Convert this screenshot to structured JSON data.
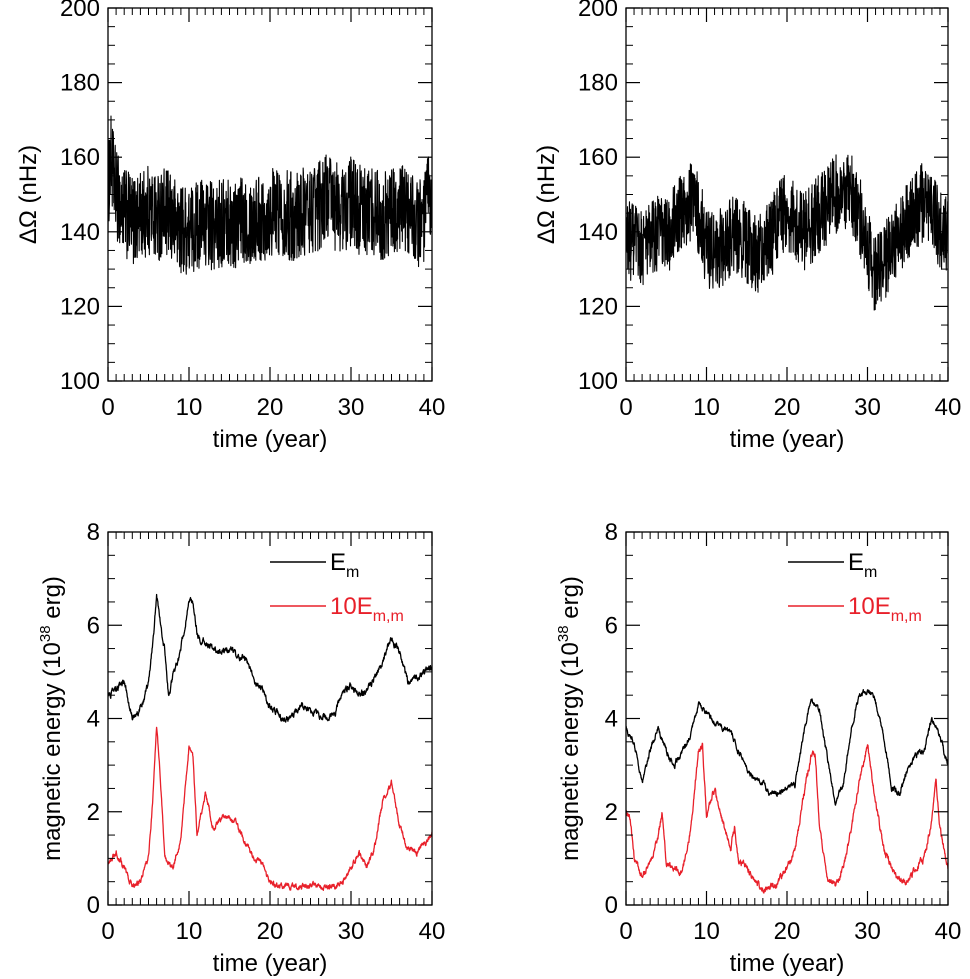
{
  "chart_data": [
    {
      "id": "omega-a",
      "type": "line",
      "xlabel": "time (year)",
      "ylabel": "ΔΩ (nHz)",
      "xlim": [
        0,
        40
      ],
      "ylim": [
        100,
        200
      ],
      "xticks": [
        "0",
        "10",
        "20",
        "30",
        "40"
      ],
      "yticks": [
        "100",
        "120",
        "140",
        "160",
        "180",
        "200"
      ],
      "grid": false,
      "series": [
        {
          "color": "#000000",
          "noise_amplitude": 9,
          "x": [
            0,
            0.3,
            1,
            2,
            3,
            4,
            5,
            6,
            7,
            8,
            9,
            10,
            11,
            12,
            13,
            14,
            15,
            16,
            17,
            18,
            19,
            20,
            21,
            22,
            23,
            24,
            25,
            26,
            27,
            28,
            29,
            30,
            31,
            32,
            33,
            34,
            35,
            36,
            37,
            38,
            39,
            39.6,
            40
          ],
          "y": [
            150,
            160,
            150,
            145,
            143,
            144,
            146,
            144,
            145,
            143,
            141,
            140,
            142,
            143,
            141,
            142,
            143,
            142,
            144,
            143,
            144,
            145,
            146,
            145,
            144,
            145,
            146,
            147,
            150,
            147,
            146,
            148,
            146,
            145,
            146,
            144,
            145,
            146,
            145,
            143,
            142,
            150,
            140
          ]
        }
      ]
    },
    {
      "id": "omega-b",
      "type": "line",
      "xlabel": "time (year)",
      "ylabel": "ΔΩ (nHz)",
      "xlim": [
        0,
        40
      ],
      "ylim": [
        100,
        200
      ],
      "xticks": [
        "0",
        "10",
        "20",
        "30",
        "40"
      ],
      "yticks": [
        "100",
        "120",
        "140",
        "160",
        "180",
        "200"
      ],
      "grid": false,
      "series": [
        {
          "color": "#000000",
          "noise_amplitude": 8,
          "x": [
            0,
            1,
            2,
            3,
            4,
            5,
            6,
            7,
            8,
            9,
            10,
            11,
            12,
            13,
            14,
            15,
            16,
            17,
            18,
            19,
            20,
            21,
            22,
            23,
            24,
            25,
            26,
            27,
            28,
            29,
            30,
            31,
            32,
            33,
            34,
            35,
            36,
            37,
            38,
            39,
            40
          ],
          "y": [
            138,
            137,
            136,
            138,
            140,
            139,
            142,
            146,
            148,
            145,
            136,
            134,
            136,
            138,
            140,
            136,
            134,
            135,
            138,
            144,
            146,
            143,
            140,
            142,
            145,
            147,
            150,
            152,
            150,
            145,
            136,
            128,
            131,
            136,
            140,
            143,
            146,
            148,
            145,
            140,
            140
          ]
        }
      ]
    },
    {
      "id": "energy-a",
      "type": "line",
      "xlabel": "time (year)",
      "ylabel": "magnetic energy (10^38 erg)",
      "ylabel_main": "magnetic energy (10",
      "ylabel_exp": "38",
      "ylabel_tail": " erg)",
      "xlim": [
        0,
        40
      ],
      "ylim": [
        0,
        8
      ],
      "xticks": [
        "0",
        "10",
        "20",
        "30",
        "40"
      ],
      "yticks": [
        "0",
        "2",
        "4",
        "6",
        "8"
      ],
      "grid": false,
      "legend": {
        "position": "top-right",
        "entries": [
          {
            "main": "E",
            "sub": "m",
            "color": "#000000"
          },
          {
            "main": "10E",
            "sub": "m,m",
            "color": "#e8202a"
          }
        ]
      },
      "series": [
        {
          "color": "#000000",
          "noise_amplitude": 0.08,
          "x": [
            0,
            1,
            2,
            3,
            4,
            5,
            5.5,
            6,
            7,
            7.5,
            8,
            9,
            10,
            10.5,
            11,
            12,
            13,
            14,
            15,
            16,
            17,
            18,
            19,
            20,
            21,
            22,
            23,
            24,
            25,
            26,
            27,
            28,
            29,
            30,
            31,
            32,
            33,
            34,
            35,
            36,
            37,
            38,
            39,
            40
          ],
          "y": [
            4.5,
            4.6,
            4.8,
            4.0,
            4.2,
            4.8,
            5.6,
            6.6,
            5.5,
            4.4,
            4.9,
            5.5,
            6.5,
            6.5,
            5.8,
            5.6,
            5.5,
            5.4,
            5.5,
            5.3,
            5.3,
            4.8,
            4.7,
            4.2,
            4.1,
            3.9,
            4.1,
            4.3,
            4.1,
            4.1,
            4.0,
            4.1,
            4.6,
            4.7,
            4.5,
            4.6,
            4.9,
            5.3,
            5.7,
            5.4,
            4.8,
            4.9,
            5.0,
            5.1
          ]
        },
        {
          "color": "#e8202a",
          "noise_amplitude": 0.07,
          "x": [
            0,
            1,
            2,
            3,
            4,
            5,
            5.5,
            6,
            6.5,
            7,
            8,
            9,
            10,
            10.5,
            11,
            12,
            12.5,
            13,
            14,
            15,
            16,
            17,
            18,
            19,
            20,
            21,
            22,
            23,
            24,
            25,
            26,
            27,
            28,
            29,
            30,
            31,
            32,
            33,
            34,
            35,
            36,
            37,
            38,
            39,
            40
          ],
          "y": [
            0.9,
            1.1,
            0.8,
            0.4,
            0.5,
            1.0,
            2.2,
            3.8,
            2.6,
            1.0,
            0.8,
            1.4,
            3.4,
            3.1,
            1.5,
            2.4,
            2.1,
            1.6,
            1.9,
            1.9,
            1.7,
            1.3,
            1.0,
            0.9,
            0.5,
            0.4,
            0.4,
            0.4,
            0.4,
            0.4,
            0.4,
            0.4,
            0.4,
            0.5,
            0.8,
            1.1,
            0.8,
            1.3,
            2.3,
            2.6,
            1.7,
            1.2,
            1.1,
            1.3,
            1.5
          ]
        }
      ]
    },
    {
      "id": "energy-b",
      "type": "line",
      "xlabel": "time (year)",
      "ylabel": "magnetic energy (10^38 erg)",
      "ylabel_main": "magnetic energy (10",
      "ylabel_exp": "38",
      "ylabel_tail": " erg)",
      "xlim": [
        0,
        40
      ],
      "ylim": [
        0,
        8
      ],
      "xticks": [
        "0",
        "10",
        "20",
        "30",
        "40"
      ],
      "yticks": [
        "0",
        "2",
        "4",
        "6",
        "8"
      ],
      "grid": false,
      "legend": {
        "position": "top-right",
        "entries": [
          {
            "main": "E",
            "sub": "m",
            "color": "#000000"
          },
          {
            "main": "10E",
            "sub": "m,m",
            "color": "#e8202a"
          }
        ]
      },
      "series": [
        {
          "color": "#000000",
          "noise_amplitude": 0.07,
          "x": [
            0,
            1,
            2,
            3,
            4,
            5,
            6,
            7,
            8,
            9,
            10,
            11,
            12,
            13,
            14,
            15,
            16,
            17,
            18,
            19,
            20,
            21,
            22,
            23,
            24,
            25,
            26,
            27,
            28,
            29,
            30,
            31,
            32,
            33,
            34,
            35,
            36,
            37,
            38,
            39,
            40
          ],
          "y": [
            3.8,
            3.5,
            2.6,
            3.3,
            3.8,
            3.3,
            3.0,
            3.3,
            3.6,
            4.3,
            4.1,
            3.9,
            3.8,
            3.7,
            3.3,
            2.9,
            2.7,
            2.6,
            2.4,
            2.4,
            2.5,
            2.6,
            3.6,
            4.4,
            4.2,
            3.2,
            2.2,
            2.6,
            3.8,
            4.5,
            4.6,
            4.4,
            3.6,
            2.5,
            2.4,
            2.9,
            3.2,
            3.3,
            4.0,
            3.6,
            3.0
          ]
        },
        {
          "color": "#e8202a",
          "noise_amplitude": 0.08,
          "x": [
            0,
            0.5,
            1,
            2,
            3,
            4,
            4.5,
            5,
            6,
            7,
            8,
            9,
            9.5,
            10,
            11,
            12,
            13,
            13.5,
            14,
            15,
            16,
            17,
            18,
            19,
            20,
            21,
            22,
            23,
            23.5,
            24,
            25,
            26,
            27,
            28,
            29,
            30,
            31,
            32,
            33,
            34,
            35,
            36,
            37,
            38,
            38.5,
            39,
            40
          ],
          "y": [
            2.0,
            1.9,
            1.0,
            0.6,
            0.9,
            1.5,
            2.0,
            0.9,
            0.8,
            0.7,
            1.6,
            3.3,
            3.4,
            1.9,
            2.5,
            1.8,
            1.2,
            1.7,
            0.9,
            0.8,
            0.5,
            0.3,
            0.4,
            0.5,
            0.8,
            1.2,
            2.3,
            3.2,
            3.3,
            1.8,
            0.6,
            0.4,
            0.8,
            1.6,
            2.7,
            3.4,
            2.2,
            1.2,
            0.8,
            0.5,
            0.5,
            0.8,
            1.0,
            1.8,
            2.7,
            1.6,
            0.8
          ]
        }
      ]
    }
  ]
}
